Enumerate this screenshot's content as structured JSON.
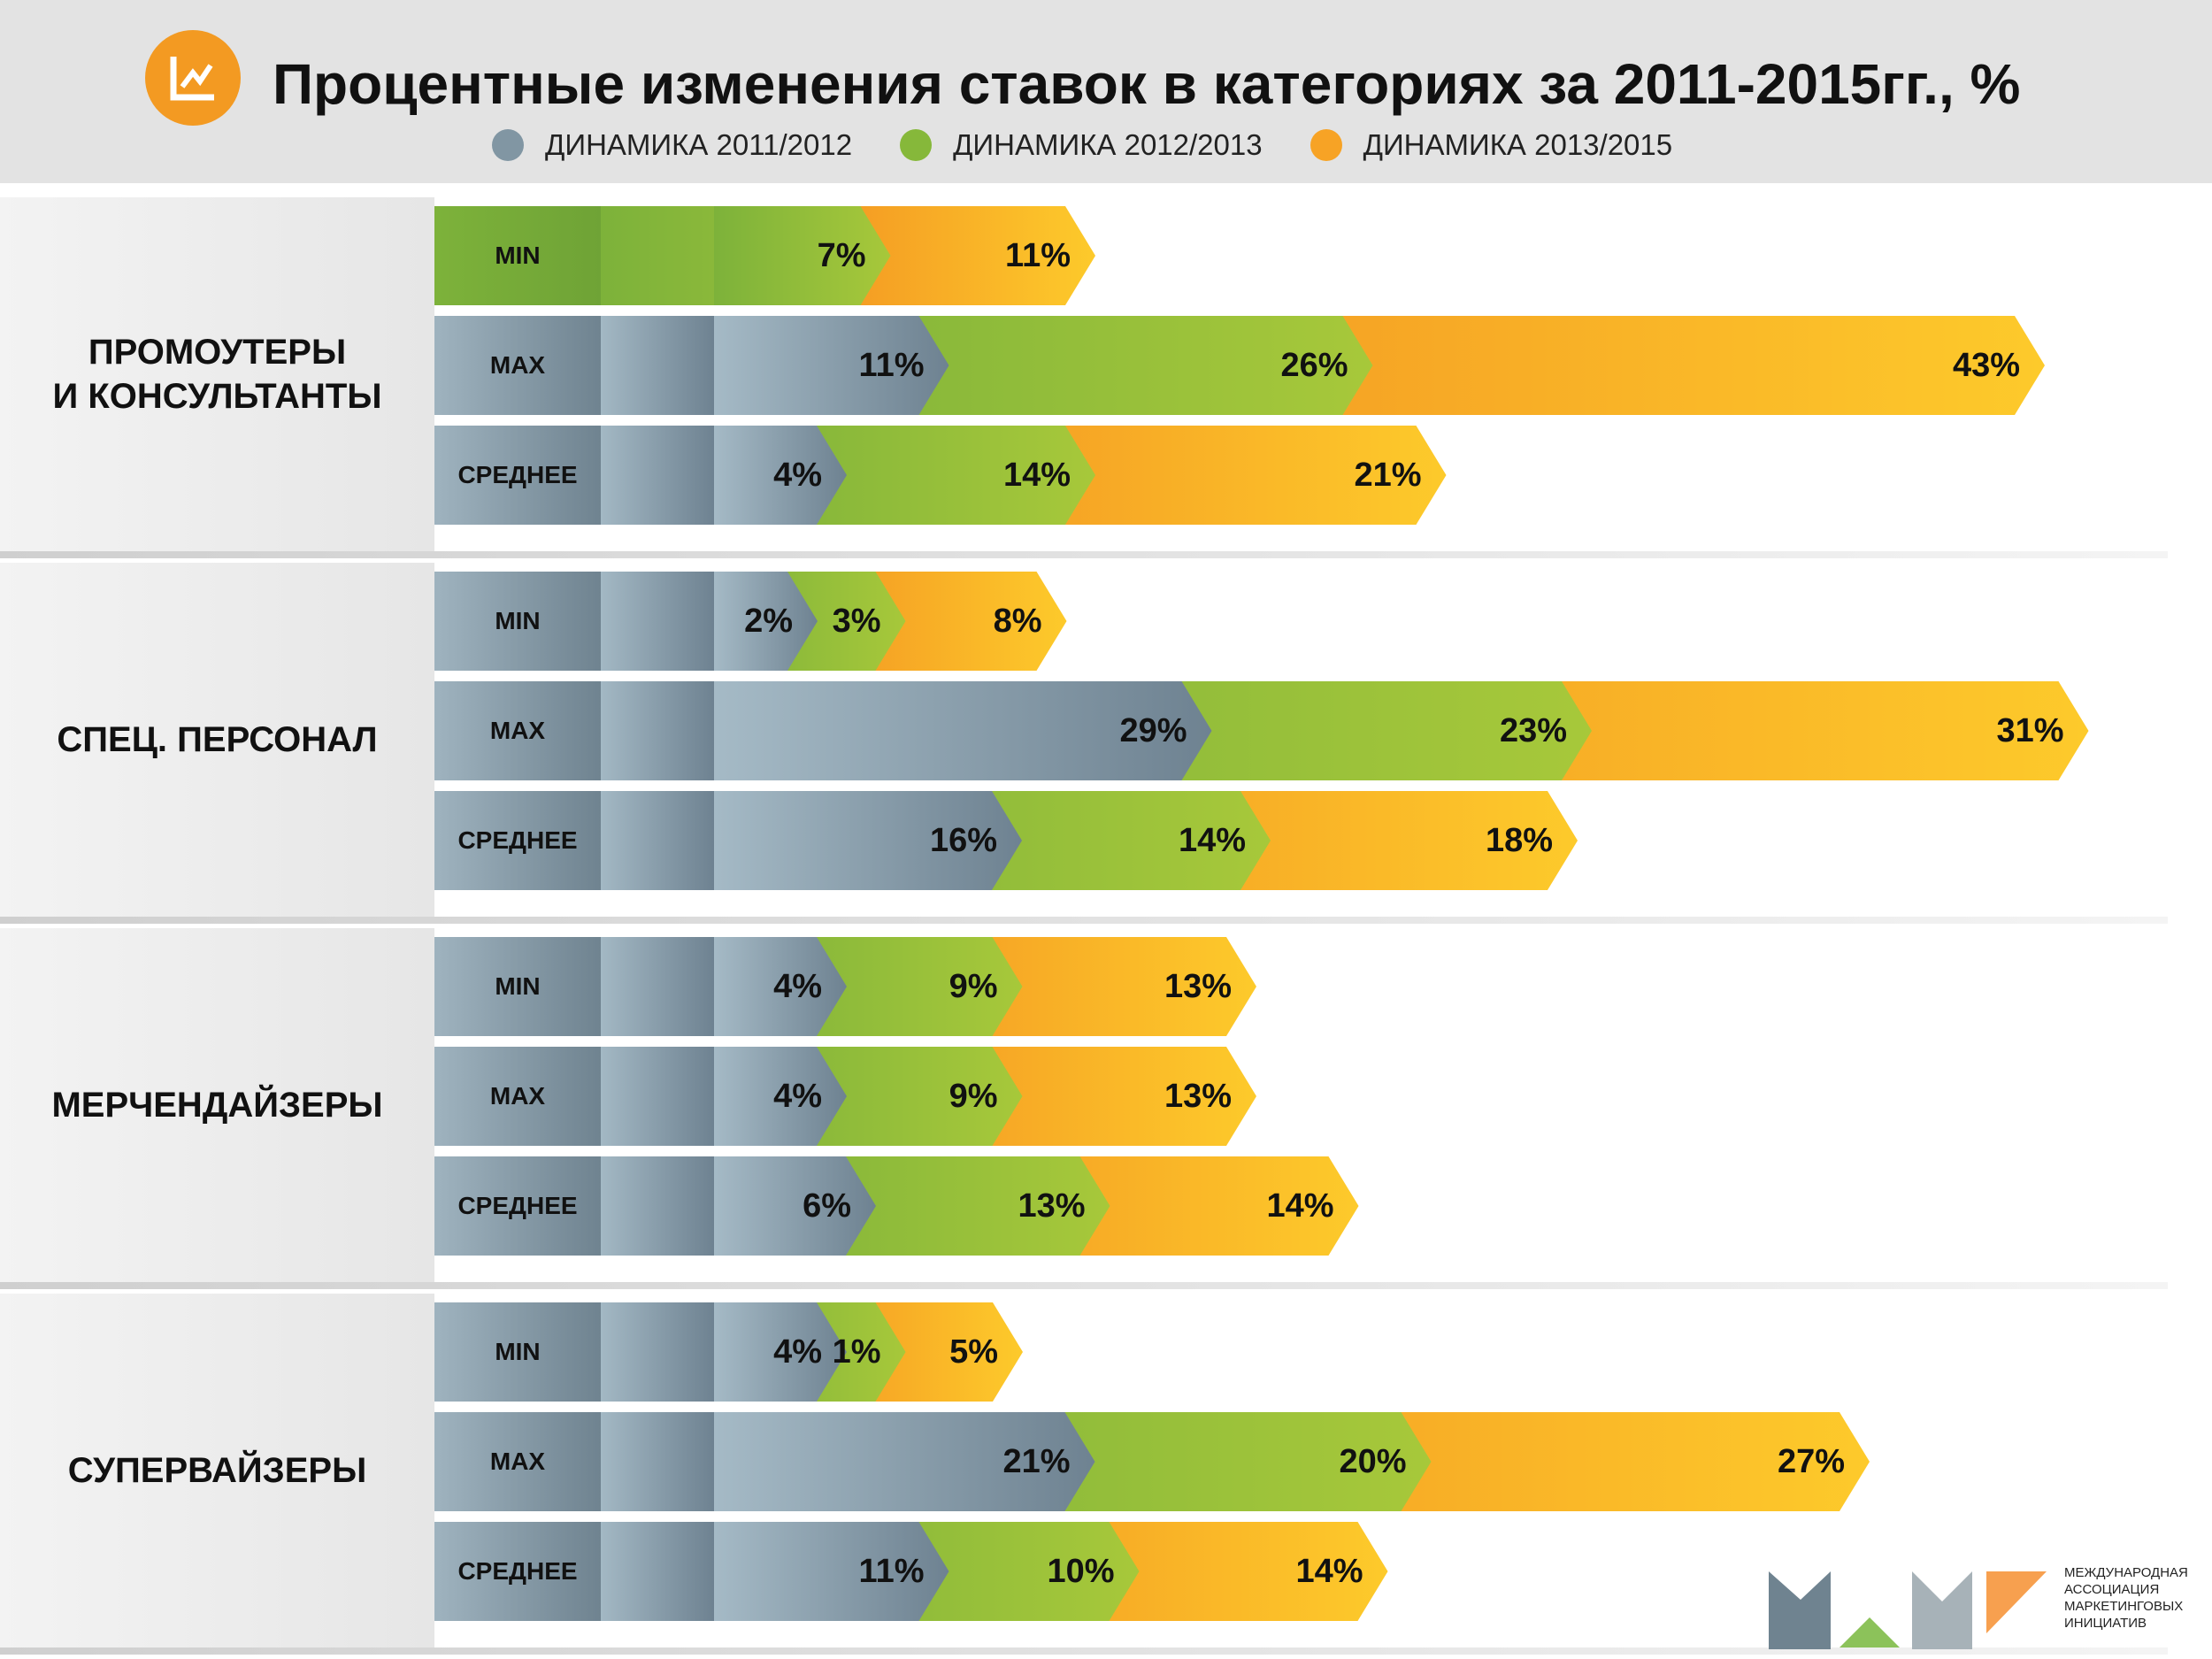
{
  "header": {
    "title": "Процентные изменения ставок в категориях за 2011-2015гг., %"
  },
  "legend": [
    {
      "label": "ДИНАМИКА 2011/2012",
      "color": "#8196a3"
    },
    {
      "label": "ДИНАМИКА 2012/2013",
      "color": "#86b83a"
    },
    {
      "label": "ДИНАМИКА 2013/2015",
      "color": "#f7a325"
    }
  ],
  "logo": {
    "text": "МЕЖДУНАРОДНАЯ АССОЦИАЦИЯ МАРКЕТИНГОВЫХ ИНИЦИАТИВ"
  },
  "chart_data": {
    "type": "bar",
    "title": "Процентные изменения ставок в категориях за 2011-2015гг., %",
    "series_names": [
      "ДИНАМИКА 2011/2012",
      "ДИНАМИКА 2012/2013",
      "ДИНАМИКА 2013/2015"
    ],
    "groups": [
      {
        "name": "ПРОМОУТЕРЫ\nИ КОНСУЛЬТАНТЫ",
        "rows": [
          {
            "label": "MIN",
            "values": [
              null,
              7,
              11
            ],
            "labels": [
              "",
              "7%",
              "11%"
            ]
          },
          {
            "label": "MAX",
            "values": [
              11,
              26,
              43
            ],
            "labels": [
              "11%",
              "26%",
              "43%"
            ]
          },
          {
            "label": "СРЕДНЕЕ",
            "values": [
              4,
              14,
              21
            ],
            "labels": [
              "4%",
              "14%",
              "21%"
            ]
          }
        ]
      },
      {
        "name": "СПЕЦ. ПЕРСОНАЛ",
        "rows": [
          {
            "label": "MIN",
            "values": [
              2,
              3,
              8
            ],
            "labels": [
              "2%",
              "3%",
              "8%"
            ]
          },
          {
            "label": "MAX",
            "values": [
              29,
              23,
              31
            ],
            "labels": [
              "29%",
              "23%",
              "31%"
            ]
          },
          {
            "label": "СРЕДНЕЕ",
            "values": [
              16,
              14,
              18
            ],
            "labels": [
              "16%",
              "14%",
              "18%"
            ]
          }
        ]
      },
      {
        "name": "МЕРЧЕНДАЙЗЕРЫ",
        "rows": [
          {
            "label": "MIN",
            "values": [
              4,
              9,
              13
            ],
            "labels": [
              "4%",
              "9%",
              "13%"
            ]
          },
          {
            "label": "MAX",
            "values": [
              4,
              9,
              13
            ],
            "labels": [
              "4%",
              "9%",
              "13%"
            ]
          },
          {
            "label": "СРЕДНЕЕ",
            "values": [
              6,
              13,
              14
            ],
            "labels": [
              "6%",
              "13%",
              "14%"
            ]
          }
        ]
      },
      {
        "name": "СУПЕРВАЙЗЕРЫ",
        "rows": [
          {
            "label": "MIN",
            "values": [
              4,
              1,
              5
            ],
            "labels": [
              "4%",
              "1%",
              "5%"
            ]
          },
          {
            "label": "MAX",
            "values": [
              21,
              20,
              27
            ],
            "labels": [
              "21%",
              "20%",
              "27%"
            ]
          },
          {
            "label": "СРЕДНЕЕ",
            "values": [
              11,
              10,
              14
            ],
            "labels": [
              "11%",
              "10%",
              "14%"
            ]
          }
        ]
      }
    ]
  }
}
